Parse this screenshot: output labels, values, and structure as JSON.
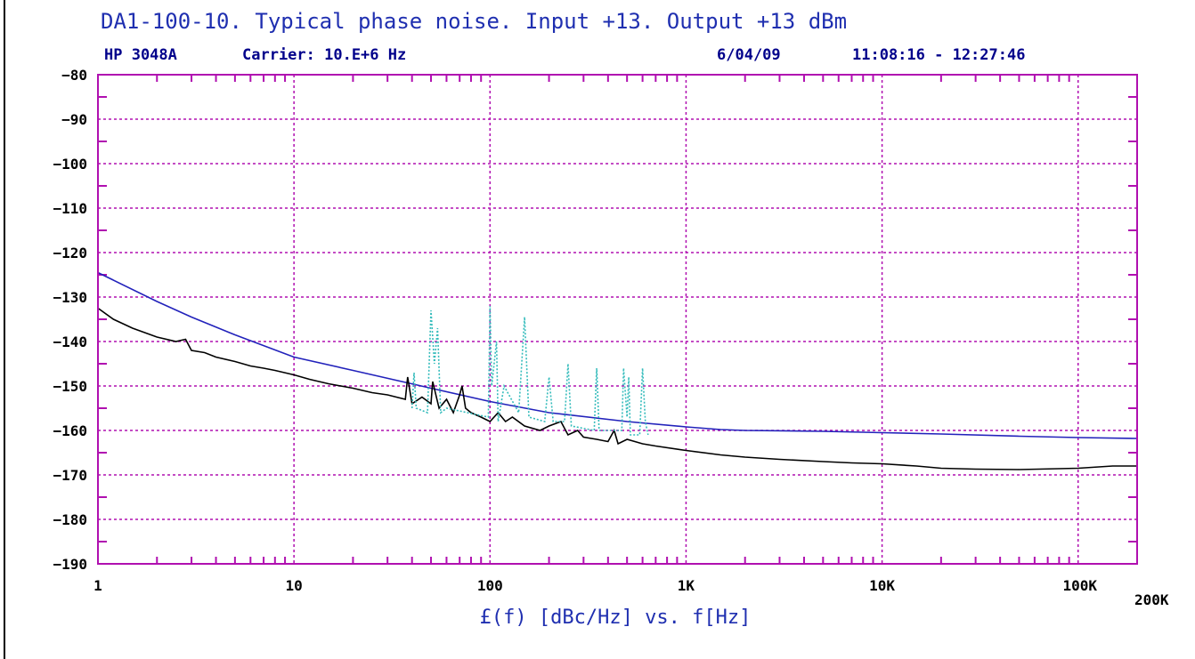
{
  "chart_data": {
    "type": "line",
    "title": "DA1-100-10. Typical phase noise. Input +13. Output +13 dBm",
    "instrument": "HP 3048A",
    "carrier": "Carrier: 10.E+6 Hz",
    "date": "6/04/09",
    "time_range": "11:08:16 - 12:27:46",
    "xlabel": "£(f) [dBc/Hz] vs. f[Hz]",
    "x_scale": "log",
    "xlim": [
      1,
      200000
    ],
    "ylim": [
      -190,
      -80
    ],
    "grid": true,
    "x_ticks": [
      {
        "value": 1,
        "label": "1"
      },
      {
        "value": 10,
        "label": "10"
      },
      {
        "value": 100,
        "label": "100"
      },
      {
        "value": 1000,
        "label": "1K"
      },
      {
        "value": 10000,
        "label": "10K"
      },
      {
        "value": 100000,
        "label": "100K"
      },
      {
        "value": 200000,
        "label": "200K"
      }
    ],
    "y_ticks": [
      -80,
      -90,
      -100,
      -110,
      -120,
      -130,
      -140,
      -150,
      -160,
      -170,
      -180,
      -190
    ],
    "series": [
      {
        "color": "#2222bb",
        "style": "solid",
        "x": [
          1,
          2,
          3,
          5,
          10,
          20,
          50,
          100,
          200,
          500,
          1000,
          1500,
          2000,
          5000,
          10000,
          20000,
          50000,
          100000,
          200000
        ],
        "y": [
          -124.5,
          -131,
          -134.5,
          -138.5,
          -143.5,
          -146.5,
          -150.5,
          -153.5,
          -156,
          -158,
          -159.2,
          -159.8,
          -160,
          -160.2,
          -160.5,
          -160.8,
          -161.3,
          -161.6,
          -161.8
        ]
      },
      {
        "color": "#000000",
        "style": "solid",
        "x": [
          1,
          1.2,
          1.5,
          2,
          2.5,
          2.8,
          3,
          3.5,
          4,
          5,
          6,
          7,
          8,
          10,
          12,
          15,
          20,
          25,
          30,
          37,
          38,
          40,
          45,
          50,
          51,
          55,
          60,
          65,
          70,
          72,
          75,
          80,
          90,
          100,
          110,
          120,
          130,
          150,
          180,
          200,
          230,
          250,
          280,
          300,
          350,
          400,
          430,
          450,
          500,
          600,
          700,
          1000,
          1500,
          2000,
          3000,
          5000,
          7000,
          10000,
          15000,
          20000,
          30000,
          50000,
          100000,
          150000,
          200000
        ],
        "y": [
          -132.5,
          -135,
          -137,
          -139,
          -140,
          -139.5,
          -142,
          -142.5,
          -143.5,
          -144.5,
          -145.5,
          -146,
          -146.5,
          -147.5,
          -148.5,
          -149.5,
          -150.5,
          -151.5,
          -152,
          -153,
          -148,
          -154,
          -152.5,
          -154,
          -149,
          -155,
          -153,
          -156,
          -152,
          -150,
          -155,
          -156,
          -157,
          -158,
          -156,
          -158,
          -157,
          -159,
          -160,
          -159,
          -158,
          -161,
          -160,
          -161.5,
          -162,
          -162.5,
          -160,
          -163,
          -162,
          -163,
          -163.5,
          -164.5,
          -165.5,
          -166,
          -166.5,
          -167,
          -167.3,
          -167.5,
          -168,
          -168.5,
          -168.7,
          -168.8,
          -168.5,
          -168,
          -168
        ]
      },
      {
        "color": "#33bbbb",
        "style": "dashed",
        "x": [
          40,
          41,
          42,
          48,
          50,
          52,
          54,
          56,
          60,
          98,
          100,
          102,
          108,
          110,
          118,
          140,
          150,
          158,
          190,
          200,
          210,
          240,
          250,
          260,
          340,
          350,
          360,
          470,
          480,
          500,
          510,
          520,
          580,
          600,
          620,
          640
        ],
        "y": [
          -155,
          -147,
          -155,
          -156,
          -133,
          -145,
          -137,
          -156,
          -155,
          -157,
          -132,
          -150,
          -140,
          -158,
          -150,
          -156,
          -134.5,
          -157,
          -158,
          -148,
          -158,
          -158,
          -145,
          -159,
          -160,
          -146,
          -160,
          -160,
          -146,
          -157,
          -148,
          -161,
          -161,
          -146,
          -158,
          -161
        ]
      }
    ]
  }
}
